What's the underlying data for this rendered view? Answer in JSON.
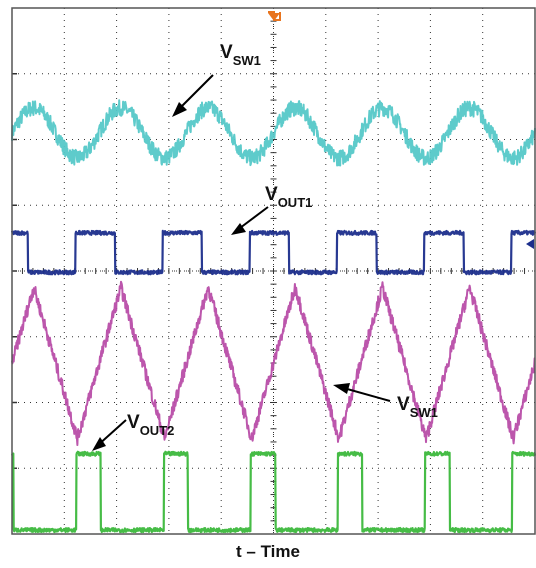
{
  "chart_data": {
    "type": "line",
    "xlabel": "t – Time",
    "ylabel": "",
    "grid": true,
    "x_divisions": 10,
    "y_divisions": 8,
    "periods_shown": 6,
    "colors": {
      "frame": "#555555",
      "grid": "#333333",
      "trigger": "#e8741e",
      "vsw1_top": "#55c8c8",
      "vout1": "#1c2e8c",
      "vsw1_mid": "#b84da8",
      "vout2": "#3cb83c"
    },
    "series": [
      {
        "key": "vsw1_top",
        "shape": "sine",
        "level_div": 6.1,
        "amplitude_div": 0.38,
        "phase": 0.0,
        "noise": 0.12
      },
      {
        "key": "vout1",
        "shape": "pulse",
        "high_div": 4.58,
        "low_div": 3.98,
        "duty": 0.45,
        "phase": 0.27,
        "noise": 0.03
      },
      {
        "key": "vsw1_mid",
        "shape": "triangle",
        "level_div": 2.6,
        "amplitude_div": 1.15,
        "phase": 0.25,
        "noise": 0.1
      },
      {
        "key": "vout2",
        "shape": "pulse",
        "high_div": 1.22,
        "low_div": 0.06,
        "duty": 0.28,
        "phase": 0.26,
        "noise": 0.03
      }
    ],
    "annotations": [
      {
        "key": "label_vsw1_top",
        "main": "V",
        "sub": "SW1"
      },
      {
        "key": "label_vout1",
        "main": "V",
        "sub": "OUT1"
      },
      {
        "key": "label_vsw1_mid",
        "main": "V",
        "sub": "SW1"
      },
      {
        "key": "label_vout2",
        "main": "V",
        "sub": "OUT2"
      }
    ]
  }
}
